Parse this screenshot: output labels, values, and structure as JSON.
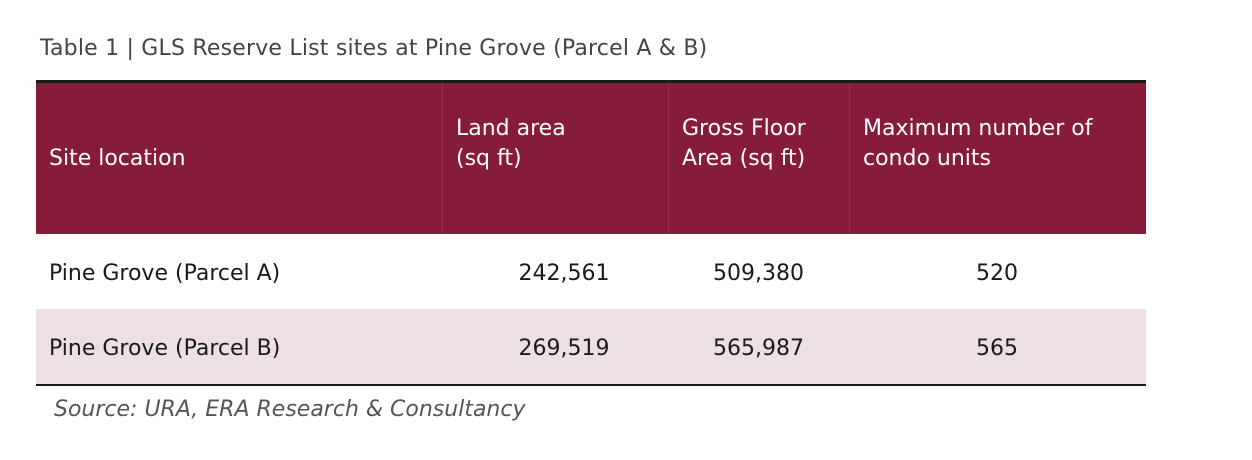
{
  "caption": "Table 1 | GLS Reserve List sites at Pine Grove (Parcel A & B)",
  "table": {
    "headers": [
      "Site location",
      "Land area\n(sq ft)",
      "Gross Floor\nArea (sq ft)",
      "Maximum number of\ncondo units"
    ],
    "rows": [
      {
        "site": "Pine Grove (Parcel A)",
        "land_area": "242,561",
        "gfa": "509,380",
        "max_units": "520"
      },
      {
        "site": "Pine Grove (Parcel B)",
        "land_area": "269,519",
        "gfa": "565,987",
        "max_units": "565"
      }
    ],
    "colors": {
      "header_bg": "#861b3a",
      "header_text": "#ffffff",
      "alt_row_bg": "#ede0e3"
    }
  },
  "source": "Source: URA, ERA Research & Consultancy"
}
